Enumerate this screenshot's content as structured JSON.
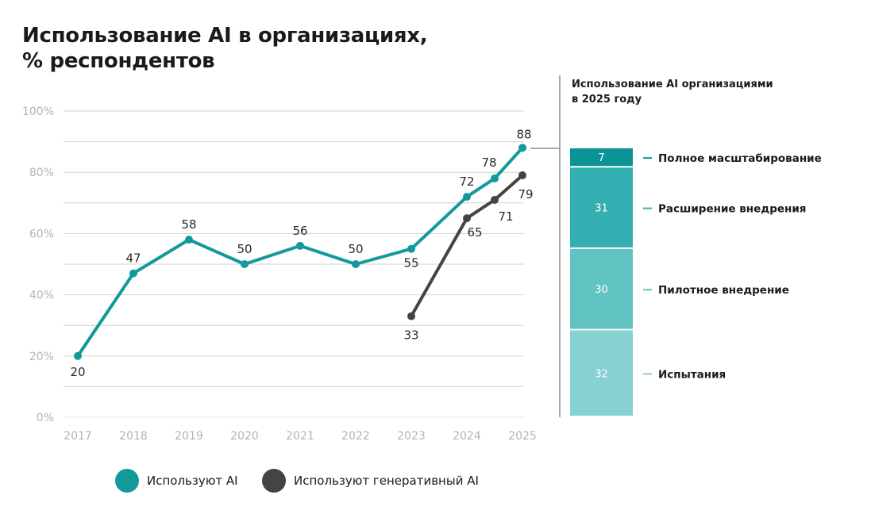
{
  "title": {
    "line1": "Использование AI в организациях,",
    "line2": "% респондентов"
  },
  "side_panel": {
    "title_line1": "Использование AI организациями",
    "title_line2": "в 2025 году"
  },
  "legend": {
    "ai": "Используют AI",
    "genai": "Используют генеративный AI"
  },
  "colors": {
    "ai": "#14999a",
    "genai": "#444444",
    "grid": "#d2d2d2",
    "full_scale": "#0b9496",
    "expansion": "#34afb1",
    "pilot": "#62c3c3",
    "trial": "#86d1d1"
  },
  "chart_data": [
    {
      "type": "line",
      "title": "Использование AI в организациях, % респондентов",
      "xlabel": "",
      "ylabel": "",
      "ylim": [
        0,
        100
      ],
      "y_ticks": [
        0,
        20,
        40,
        60,
        80,
        100
      ],
      "y_tick_labels": [
        "0%",
        "20%",
        "40%",
        "60%",
        "80%",
        "100%"
      ],
      "x_tick_labels": [
        "2017",
        "2018",
        "2019",
        "2020",
        "2021",
        "2022",
        "2023",
        "2024",
        "2025"
      ],
      "series": [
        {
          "name": "Используют AI",
          "color": "#14999a",
          "x": [
            2017,
            2018,
            2019,
            2020,
            2021,
            2022,
            2023,
            2024,
            2024.5,
            2025
          ],
          "values": [
            20,
            47,
            58,
            50,
            56,
            50,
            55,
            72,
            78,
            88
          ],
          "labels": [
            "20",
            "47",
            "58",
            "50",
            "56",
            "50",
            "55",
            "72",
            "78",
            "88"
          ]
        },
        {
          "name": "Используют генеративный AI",
          "color": "#444444",
          "x": [
            2023,
            2024,
            2024.5,
            2025
          ],
          "values": [
            33,
            65,
            71,
            79
          ],
          "labels": [
            "33",
            "65",
            "71",
            "79"
          ]
        }
      ]
    },
    {
      "type": "bar",
      "stacked": true,
      "title": "Использование AI организациями в 2025 году",
      "total": 88,
      "segments": [
        {
          "name": "Полное масштабирование",
          "value": 7,
          "label": "7",
          "color": "#0b9496"
        },
        {
          "name": "Расширение внедрения",
          "value": 31,
          "label": "31",
          "color": "#34afb1"
        },
        {
          "name": "Пилотное внедрение",
          "value": 30,
          "label": "30",
          "color": "#62c3c3"
        },
        {
          "name": "Испытания",
          "value": 32,
          "label": "32",
          "color": "#86d1d1"
        }
      ]
    }
  ]
}
